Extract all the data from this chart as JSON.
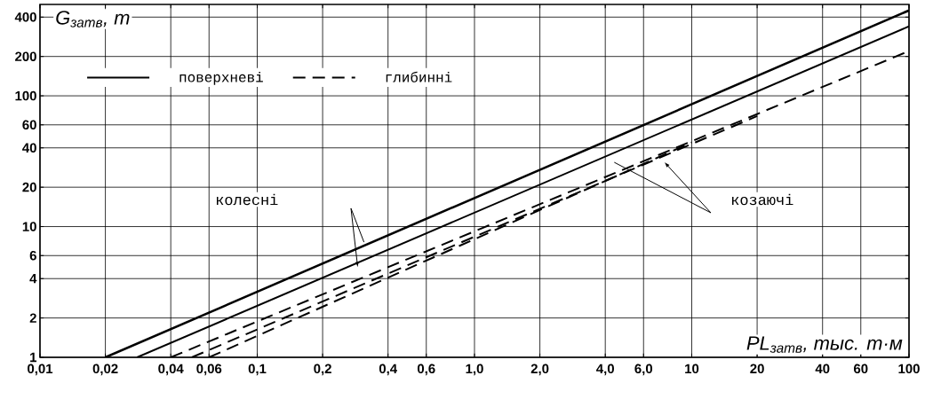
{
  "chart_data": {
    "type": "line",
    "xlabel": "PL$_{затв}$, тыс. т·м",
    "ylabel": "G$_{затв}$, т",
    "log": "xy",
    "grid": true,
    "legend": "top left",
    "xlim": [
      0.01,
      100
    ],
    "ylim": [
      1,
      500
    ],
    "xticks": [
      {
        "value": 0.01,
        "label": "0,01"
      },
      {
        "value": 0.02,
        "label": "0,02"
      },
      {
        "value": 0.04,
        "label": "0,04"
      },
      {
        "value": 0.06,
        "label": "0,06"
      },
      {
        "value": 0.1,
        "label": "0,1"
      },
      {
        "value": 0.2,
        "label": "0,2"
      },
      {
        "value": 0.4,
        "label": "0,4"
      },
      {
        "value": 0.6,
        "label": "0,6"
      },
      {
        "value": 1,
        "label": "1,0"
      },
      {
        "value": 2,
        "label": "2,0"
      },
      {
        "value": 4,
        "label": "4,0"
      },
      {
        "value": 6,
        "label": "6,0"
      },
      10,
      20,
      40,
      60,
      100
    ],
    "yticks": [
      1,
      2,
      4,
      6,
      10,
      20,
      40,
      60,
      100,
      200,
      400
    ],
    "series": [
      {
        "name": "поверхневі",
        "color": "#000000",
        "line_style": "solid",
        "x": [
          0.02,
          100
        ],
        "values": [
          1,
          450
        ]
      },
      {
        "color": "#000000",
        "line_style": "solid",
        "x": [
          0.028,
          100
        ],
        "values": [
          1,
          340
        ]
      },
      {
        "name": "глибинні",
        "color": "#000000",
        "line_style": "dashed",
        "x": [
          0.04,
          100
        ],
        "values": [
          1,
          220
        ]
      },
      {
        "color": "#000000",
        "line_style": "dashed",
        "x": [
          0.05,
          20
        ],
        "values": [
          1,
          70
        ]
      },
      {
        "color": "#000000",
        "line_style": "dashed",
        "x": [
          0.06,
          10
        ],
        "values": [
          1,
          44
        ]
      }
    ],
    "annotations": [
      "колесні",
      "козаючі"
    ]
  }
}
